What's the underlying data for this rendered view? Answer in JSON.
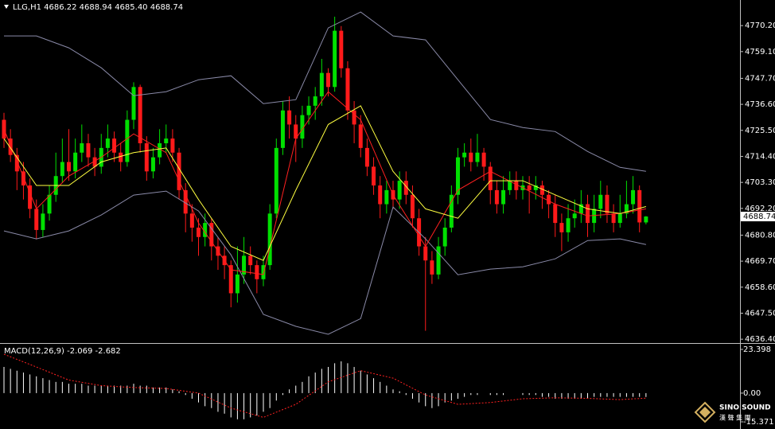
{
  "chart_data": {
    "type": "candlestick",
    "title": "LLG,H1  4686.22 4688.94 4685.40 4688.74",
    "up_color": "#00e000",
    "down_color": "#ff1a1a",
    "ylim": [
      4635.1,
      4778.4
    ],
    "yticks": [
      {
        "value": 4770.2,
        "label": "4770.20"
      },
      {
        "value": 4759.1,
        "label": "4759.10"
      },
      {
        "value": 4747.7,
        "label": "4747.70"
      },
      {
        "value": 4736.6,
        "label": "4736.60"
      },
      {
        "value": 4725.5,
        "label": "4725.50"
      },
      {
        "value": 4714.4,
        "label": "4714.40"
      },
      {
        "value": 4703.3,
        "label": "4703.30"
      },
      {
        "value": 4692.2,
        "label": "4692.20"
      },
      {
        "value": 4680.8,
        "label": "4680.80"
      },
      {
        "value": 4669.7,
        "label": "4669.70"
      },
      {
        "value": 4658.6,
        "label": "4658.60"
      },
      {
        "value": 4647.5,
        "label": "4647.50"
      },
      {
        "value": 4636.4,
        "label": "4636.40"
      }
    ],
    "candles": {
      "open": [
        4730,
        4722,
        4715,
        4708,
        4702,
        4692,
        4683,
        4690,
        4698,
        4706,
        4712,
        4708,
        4716,
        4720,
        4714,
        4710,
        4718,
        4722,
        4716,
        4712,
        4730,
        4744,
        4720,
        4708,
        4714,
        4720,
        4722,
        4716,
        4700,
        4690,
        4684,
        4680,
        4686,
        4676,
        4672,
        4668,
        4656,
        4664,
        4672,
        4668,
        4662,
        4668,
        4690,
        4718,
        4734,
        4728,
        4722,
        4732,
        4736,
        4740,
        4750,
        4744,
        4768,
        4752,
        4734,
        4728,
        4718,
        4710,
        4702,
        4694,
        4700,
        4696,
        4704,
        4698,
        4688,
        4676,
        4670,
        4664,
        4676,
        4684,
        4698,
        4714,
        4716,
        4712,
        4716,
        4710,
        4700,
        4694,
        4700,
        4704,
        4700,
        4702,
        4700,
        4702,
        4698,
        4694,
        4686,
        4682,
        4688,
        4690,
        4694,
        4686,
        4692,
        4698,
        4690,
        4686,
        4690,
        4694,
        4700,
        4686.22
      ],
      "high": [
        4733,
        4726,
        4718,
        4712,
        4705,
        4696,
        4694,
        4702,
        4716,
        4722,
        4726,
        4722,
        4728,
        4724,
        4718,
        4724,
        4728,
        4725,
        4720,
        4734,
        4746,
        4745,
        4723,
        4718,
        4726,
        4728,
        4726,
        4718,
        4703,
        4694,
        4688,
        4690,
        4688,
        4680,
        4676,
        4670,
        4676,
        4680,
        4676,
        4670,
        4672,
        4694,
        4722,
        4738,
        4740,
        4732,
        4736,
        4740,
        4744,
        4756,
        4752,
        4774,
        4770,
        4755,
        4738,
        4732,
        4722,
        4714,
        4706,
        4704,
        4704,
        4708,
        4708,
        4702,
        4692,
        4680,
        4674,
        4680,
        4688,
        4702,
        4718,
        4720,
        4722,
        4724,
        4718,
        4712,
        4704,
        4706,
        4708,
        4708,
        4706,
        4706,
        4706,
        4704,
        4700,
        4698,
        4690,
        4694,
        4696,
        4700,
        4698,
        4698,
        4704,
        4702,
        4694,
        4698,
        4704,
        4706,
        4702,
        4688.94
      ],
      "low": [
        4718,
        4712,
        4700,
        4696,
        4688,
        4679,
        4680,
        4687,
        4695,
        4703,
        4704,
        4705,
        4712,
        4710,
        4706,
        4707,
        4714,
        4712,
        4708,
        4710,
        4726,
        4716,
        4704,
        4705,
        4711,
        4716,
        4712,
        4696,
        4682,
        4678,
        4672,
        4676,
        4670,
        4666,
        4662,
        4650,
        4652,
        4660,
        4664,
        4656,
        4659,
        4666,
        4688,
        4715,
        4722,
        4712,
        4718,
        4728,
        4730,
        4736,
        4740,
        4742,
        4748,
        4730,
        4720,
        4714,
        4706,
        4698,
        4688,
        4690,
        4692,
        4692,
        4694,
        4684,
        4672,
        4640,
        4660,
        4662,
        4672,
        4682,
        4694,
        4710,
        4708,
        4710,
        4704,
        4694,
        4690,
        4690,
        4698,
        4696,
        4696,
        4690,
        4696,
        4692,
        4688,
        4680,
        4674,
        4678,
        4684,
        4686,
        4680,
        4682,
        4688,
        4686,
        4682,
        4684,
        4688,
        4690,
        4682,
        4685.4
      ],
      "close": [
        4722,
        4715,
        4708,
        4702,
        4692,
        4683,
        4690,
        4698,
        4706,
        4712,
        4708,
        4716,
        4720,
        4714,
        4710,
        4718,
        4722,
        4716,
        4712,
        4730,
        4744,
        4720,
        4708,
        4714,
        4720,
        4722,
        4716,
        4700,
        4690,
        4684,
        4680,
        4686,
        4676,
        4672,
        4668,
        4656,
        4664,
        4672,
        4668,
        4662,
        4668,
        4690,
        4718,
        4734,
        4728,
        4722,
        4732,
        4736,
        4740,
        4750,
        4744,
        4768,
        4752,
        4734,
        4728,
        4718,
        4710,
        4702,
        4694,
        4700,
        4696,
        4704,
        4698,
        4688,
        4676,
        4670,
        4664,
        4676,
        4684,
        4698,
        4714,
        4716,
        4712,
        4716,
        4710,
        4700,
        4694,
        4700,
        4704,
        4700,
        4702,
        4700,
        4702,
        4698,
        4694,
        4686,
        4682,
        4688,
        4690,
        4694,
        4686,
        4692,
        4698,
        4690,
        4686,
        4690,
        4694,
        4700,
        4686.22,
        4688.74
      ]
    },
    "overlays": [
      {
        "color": "#8a8aa8",
        "x": [
          0,
          5,
          10,
          15,
          20,
          25,
          30,
          35,
          40,
          45,
          50,
          55,
          60,
          65,
          70,
          75,
          80,
          85,
          90,
          95,
          99
        ],
        "values": [
          4765.8,
          4765.8,
          4760.7,
          4752.2,
          4740.3,
          4742,
          4747.1,
          4748.8,
          4736.9,
          4738.6,
          4769.2,
          4776,
          4765.8,
          4764.1,
          4747.1,
          4730.1,
          4726.7,
          4725,
          4716.5,
          4709.7,
          4708
        ]
      },
      {
        "color": "#8a8aa8",
        "x": [
          0,
          5,
          10,
          15,
          20,
          25,
          30,
          35,
          40,
          45,
          50,
          55,
          60,
          65,
          70,
          75,
          80,
          85,
          90,
          95,
          99
        ],
        "values": [
          4682.6,
          4679.2,
          4682.6,
          4689.4,
          4697.9,
          4699.6,
          4691.1,
          4672.4,
          4647,
          4641.9,
          4638.5,
          4645.2,
          4692.8,
          4679.2,
          4663.9,
          4666.3,
          4667.3,
          4670.7,
          4678.5,
          4679.2,
          4676.8
        ]
      },
      {
        "color": "#ff2020",
        "x": [
          0,
          5,
          10,
          15,
          20,
          25,
          30,
          35,
          40,
          45,
          50,
          55,
          60,
          65,
          70,
          75,
          80,
          85,
          90,
          95,
          99
        ],
        "values": [
          4726,
          4692,
          4706,
          4714,
          4724,
          4716,
          4686,
          4666,
          4664,
          4722,
          4742,
          4730,
          4698,
          4676,
          4700,
          4708,
          4701,
          4694,
          4689,
          4690,
          4692
        ]
      },
      {
        "color": "#ffff40",
        "x": [
          0,
          5,
          10,
          15,
          20,
          25,
          30,
          35,
          40,
          45,
          50,
          55,
          60,
          65,
          70,
          75,
          80,
          85,
          90,
          95,
          99
        ],
        "values": [
          4722,
          4702,
          4702,
          4712,
          4716,
          4718,
          4696,
          4676,
          4670,
          4700,
          4728,
          4736,
          4708,
          4692,
          4688,
          4704,
          4704,
          4698,
          4692,
          4690,
          4693
        ]
      }
    ],
    "macd": {
      "title": "MACD(12,26,9) -2.069 -2.682",
      "ylim": [
        -18.35,
        25.95
      ],
      "yticks": [
        23.398,
        {
          "value": 0,
          "label": "0.00"
        },
        -15.371
      ],
      "histogram_color": "#ffffff",
      "histogram": [
        14,
        13,
        12,
        11,
        10,
        9,
        8,
        7,
        6,
        6,
        5,
        5,
        5,
        4,
        4,
        4,
        4,
        4,
        4,
        4,
        5,
        4,
        4,
        3,
        3,
        3,
        2,
        1,
        -1,
        -3,
        -5,
        -7,
        -8,
        -10,
        -11,
        -13,
        -14,
        -14,
        -13,
        -12,
        -10,
        -8,
        -4,
        -1,
        2,
        4,
        6,
        9,
        11,
        13,
        14,
        16,
        17,
        16,
        14,
        12,
        10,
        8,
        6,
        4,
        2,
        1,
        -1,
        -3,
        -5,
        -7,
        -8,
        -7,
        -5,
        -4,
        -3,
        -2,
        -1,
        -1,
        0,
        -1,
        -1,
        -1,
        0,
        0,
        -1,
        -1,
        -1,
        -2,
        -2,
        -3,
        -3,
        -3,
        -3,
        -3,
        -3,
        -2,
        -2,
        -2,
        -2,
        -2,
        -2,
        -2,
        -2,
        -2.069
      ],
      "signal": {
        "color": "#ff2020",
        "x": [
          0,
          5,
          10,
          15,
          20,
          25,
          30,
          35,
          40,
          45,
          50,
          55,
          60,
          65,
          70,
          75,
          80,
          85,
          90,
          95,
          99
        ],
        "values": [
          20.8,
          14,
          7,
          4,
          3,
          2.5,
          0,
          -8,
          -13,
          -6,
          6,
          12,
          8,
          -1,
          -6,
          -5,
          -3,
          -2.5,
          -2.8,
          -3.5,
          -2.682
        ]
      }
    },
    "watermark": {
      "name": "SINO SOUND",
      "sub": "漢 聲 集 團"
    }
  }
}
